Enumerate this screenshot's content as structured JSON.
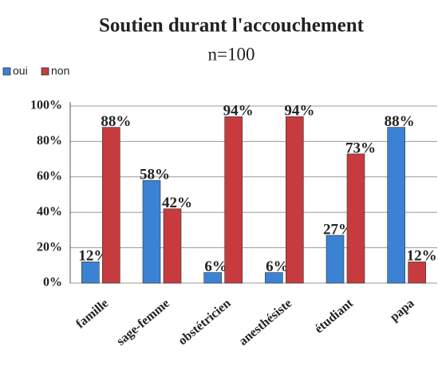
{
  "chart_data": {
    "type": "bar",
    "title": "Soutien durant l'accouchement",
    "subtitle": "n=100",
    "categories": [
      "famille",
      "sage-femme",
      "obstétricien",
      "anesthésiste",
      "étudiant",
      "papa"
    ],
    "series": [
      {
        "name": "oui",
        "color": "#3b82d4",
        "values": [
          12,
          58,
          6,
          6,
          27,
          88
        ],
        "value_labels": [
          "12%",
          "58%",
          "6%",
          "6%",
          "27%",
          "88%"
        ]
      },
      {
        "name": "non",
        "color": "#c73a3e",
        "values": [
          88,
          42,
          94,
          94,
          73,
          12
        ],
        "value_labels": [
          "88%",
          "42%",
          "94%",
          "94%",
          "73%",
          "12%"
        ]
      }
    ],
    "ylim": [
      0,
      100
    ],
    "yticks": [
      {
        "value": 0,
        "label": "0%"
      },
      {
        "value": 20,
        "label": "20%"
      },
      {
        "value": 40,
        "label": "40%"
      },
      {
        "value": 60,
        "label": "60%"
      },
      {
        "value": 80,
        "label": "80%"
      },
      {
        "value": 100,
        "label": "100%"
      }
    ],
    "grid": true,
    "legend": "top-left"
  }
}
